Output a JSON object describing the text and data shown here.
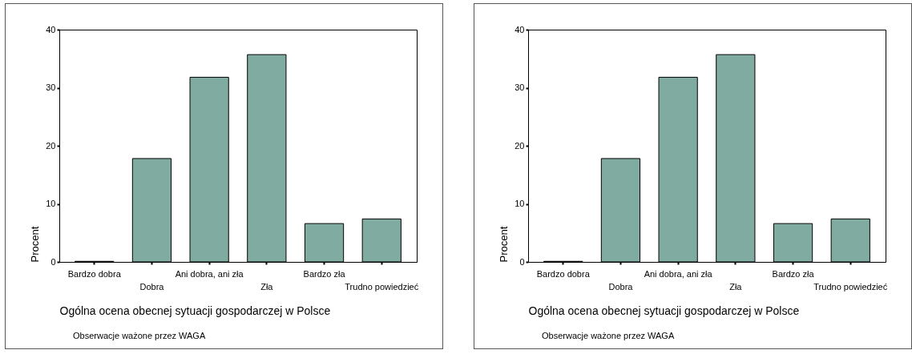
{
  "chart_data": [
    {
      "type": "bar",
      "categories": [
        "Bardzo dobra",
        "Dobra",
        "Ani dobra, ani zła",
        "Zła",
        "Bardzo zła",
        "Trudno powiedzieć"
      ],
      "values": [
        0.1,
        17.8,
        31.8,
        35.7,
        6.6,
        7.4
      ],
      "color": "#80aba0",
      "ylim": [
        0,
        40
      ],
      "yticks": [
        0,
        10,
        20,
        30,
        40
      ],
      "ylabel": "Procent",
      "xlabel": "Ogólna ocena obecnej sytuacji gospodarczej w Polsce",
      "annotations": [
        "Obserwacje ważone przez WAGA"
      ],
      "grid": false
    },
    {
      "type": "bar",
      "categories": [
        "Bardzo dobra",
        "Dobra",
        "Ani dobra, ani zła",
        "Zła",
        "Bardzo zła",
        "Trudno powiedzieć"
      ],
      "values": [
        0.1,
        17.8,
        31.8,
        35.7,
        6.6,
        7.4
      ],
      "color": "#80aba0",
      "ylim": [
        0,
        40
      ],
      "yticks": [
        0,
        10,
        20,
        30,
        40
      ],
      "ylabel": "Procent",
      "xlabel": "Ogólna ocena obecnej sytuacji gospodarczej w Polsce",
      "annotations": [
        "Obserwacje ważone przez WAGA"
      ],
      "grid": false
    }
  ]
}
